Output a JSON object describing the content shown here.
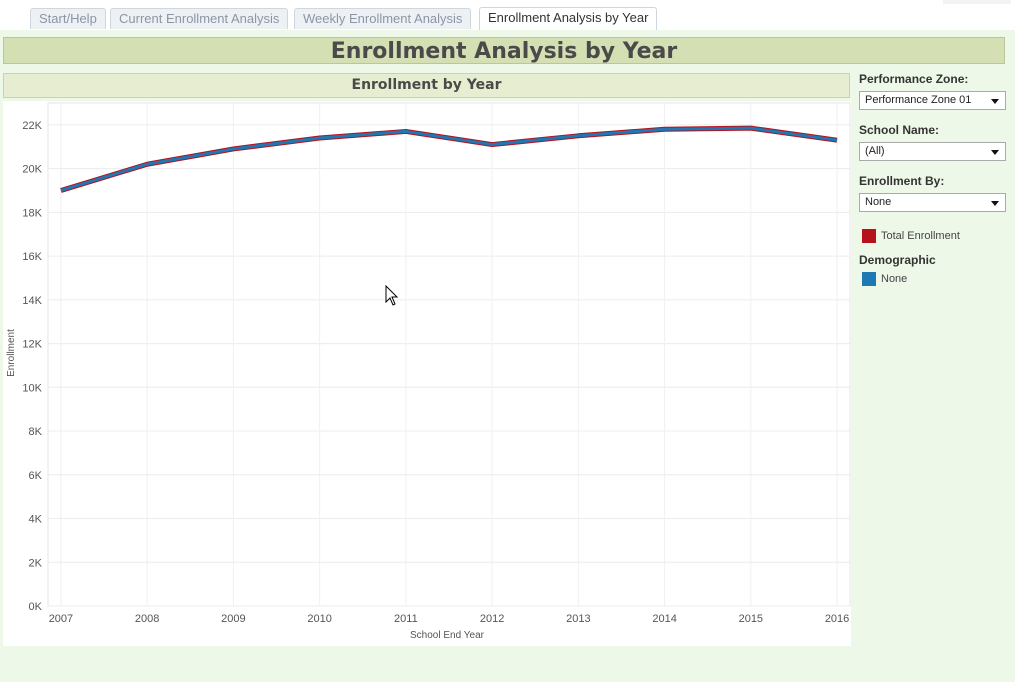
{
  "tabs": [
    {
      "label": "Start/Help"
    },
    {
      "label": "Current Enrollment Analysis"
    },
    {
      "label": "Weekly Enrollment Analysis"
    },
    {
      "label": "Enrollment Analysis by Year"
    }
  ],
  "dashboard": {
    "title": "Enrollment Analysis by Year",
    "chart_title": "Enrollment by Year"
  },
  "filters": {
    "performance_zone": {
      "label": "Performance Zone:",
      "value": "Performance Zone 01"
    },
    "school_name": {
      "label": "School Name:",
      "value": "(All)"
    },
    "enrollment_by": {
      "label": "Enrollment By:",
      "value": "None"
    }
  },
  "legend": {
    "total_enrollment": {
      "label": "Total Enrollment",
      "color": "#b5121b"
    },
    "demographic_title": "Demographic",
    "none": {
      "label": "None",
      "color": "#1f77b4"
    }
  },
  "chart_data": {
    "type": "line",
    "title": "",
    "xlabel": "School End Year",
    "ylabel": "Enrollment",
    "x": [
      2007,
      2008,
      2009,
      2010,
      2011,
      2012,
      2013,
      2014,
      2015,
      2016
    ],
    "x_tick_labels": [
      "2007",
      "2008",
      "2009",
      "2010",
      "2011",
      "2012",
      "2013",
      "2014",
      "2015",
      "2016"
    ],
    "y_ticks": [
      0,
      2000,
      4000,
      6000,
      8000,
      10000,
      12000,
      14000,
      16000,
      18000,
      20000,
      22000
    ],
    "y_tick_labels": [
      "0K",
      "2K",
      "4K",
      "6K",
      "8K",
      "10K",
      "12K",
      "14K",
      "16K",
      "18K",
      "20K",
      "22K"
    ],
    "ylim": [
      0,
      23000
    ],
    "grid": true,
    "series": [
      {
        "name": "Total Enrollment",
        "color": "#b5121b",
        "values": [
          19000,
          20200,
          20900,
          21400,
          21700,
          21100,
          21500,
          21800,
          21850,
          21300
        ]
      },
      {
        "name": "None",
        "color": "#1f77b4",
        "values": [
          19000,
          20200,
          20900,
          21400,
          21700,
          21100,
          21500,
          21800,
          21850,
          21300
        ]
      }
    ]
  }
}
